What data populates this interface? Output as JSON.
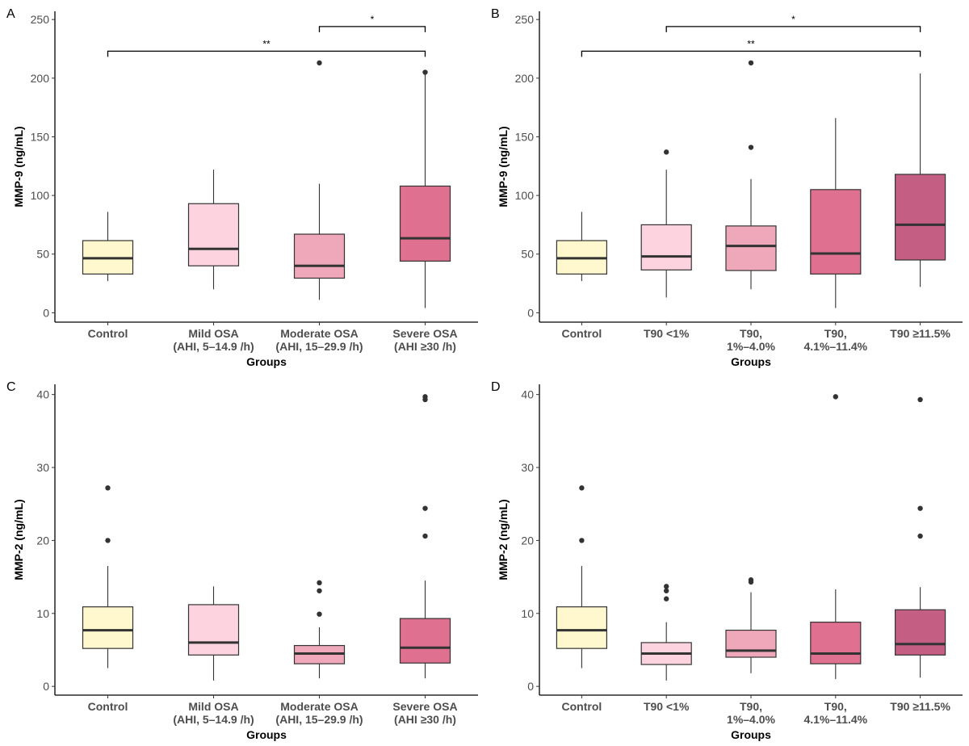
{
  "chart_data": [
    {
      "panel": "A",
      "type": "box",
      "xlabel": "Groups",
      "ylabel": "MMP-9 (ng/mL)",
      "ylim": [
        -8,
        257
      ],
      "yticks": [
        0,
        50,
        100,
        150,
        200,
        250
      ],
      "categories": [
        [
          "Control"
        ],
        [
          "Mild OSA",
          "(AHI, 5–14.9 /h)"
        ],
        [
          "Moderate OSA",
          "(AHI, 15–29.9 /h)"
        ],
        [
          "Severe OSA",
          "(AHI ≥30 /h)"
        ]
      ],
      "fills": [
        "#FFF8CF",
        "#FDD3DF",
        "#EFA8BA",
        "#DF7090"
      ],
      "boxes": [
        {
          "low": 27,
          "q1": 33,
          "median": 46.5,
          "q3": 61.5,
          "high": 86,
          "outliers": []
        },
        {
          "low": 20,
          "q1": 40,
          "median": 54.5,
          "q3": 93,
          "high": 122,
          "outliers": []
        },
        {
          "low": 11,
          "q1": 29.5,
          "median": 40,
          "q3": 67,
          "high": 110,
          "outliers": [
            213
          ]
        },
        {
          "low": 4,
          "q1": 44,
          "median": 63.5,
          "q3": 108,
          "high": 205,
          "outliers": [
            205
          ]
        }
      ],
      "significance": [
        {
          "from": 2,
          "to": 3,
          "y": 244,
          "label": "*"
        },
        {
          "from": 0,
          "to": 3,
          "y": 223,
          "label": "**"
        }
      ]
    },
    {
      "panel": "B",
      "type": "box",
      "xlabel": "Groups",
      "ylabel": "MMP-9 (ng/mL)",
      "ylim": [
        -8,
        257
      ],
      "yticks": [
        0,
        50,
        100,
        150,
        200,
        250
      ],
      "categories": [
        [
          "Control"
        ],
        [
          "T90 <1%"
        ],
        [
          "T90,",
          "1%–4.0%"
        ],
        [
          "T90,",
          "4.1%–11.4%"
        ],
        [
          "T90 ≥11.5%"
        ]
      ],
      "fills": [
        "#FFF8CF",
        "#FDD3DF",
        "#EFA8BA",
        "#DF7090",
        "#C45E82"
      ],
      "boxes": [
        {
          "low": 27,
          "q1": 33,
          "median": 46.5,
          "q3": 61.5,
          "high": 86,
          "outliers": []
        },
        {
          "low": 13,
          "q1": 36.5,
          "median": 48,
          "q3": 75,
          "high": 122,
          "outliers": [
            137
          ]
        },
        {
          "low": 20,
          "q1": 36,
          "median": 57,
          "q3": 74,
          "high": 114,
          "outliers": [
            141,
            213
          ]
        },
        {
          "low": 4,
          "q1": 33,
          "median": 50.5,
          "q3": 105,
          "high": 166,
          "outliers": []
        },
        {
          "low": 22,
          "q1": 45,
          "median": 75,
          "q3": 118,
          "high": 204,
          "outliers": []
        }
      ],
      "significance": [
        {
          "from": 1,
          "to": 4,
          "y": 244,
          "label": "*"
        },
        {
          "from": 0,
          "to": 4,
          "y": 223,
          "label": "**"
        }
      ]
    },
    {
      "panel": "C",
      "type": "box",
      "xlabel": "Groups",
      "ylabel": "MMP-2 (ng/mL)",
      "ylim": [
        -1.2,
        41.4
      ],
      "yticks": [
        0,
        10,
        20,
        30,
        40
      ],
      "categories": [
        [
          "Control"
        ],
        [
          "Mild OSA",
          "(AHI, 5–14.9 /h)"
        ],
        [
          "Moderate OSA",
          "(AHI, 15–29.9 /h)"
        ],
        [
          "Severe OSA",
          "(AHI ≥30 /h)"
        ]
      ],
      "fills": [
        "#FFF8CF",
        "#FDD3DF",
        "#EFA8BA",
        "#DF7090"
      ],
      "boxes": [
        {
          "low": 2.5,
          "q1": 5.2,
          "median": 7.7,
          "q3": 10.9,
          "high": 16.5,
          "outliers": [
            20,
            27.2
          ]
        },
        {
          "low": 0.8,
          "q1": 4.3,
          "median": 6.0,
          "q3": 11.2,
          "high": 13.7,
          "outliers": []
        },
        {
          "low": 1.1,
          "q1": 3.1,
          "median": 4.5,
          "q3": 5.6,
          "high": 8.1,
          "outliers": [
            9.9,
            13.1,
            14.2
          ]
        },
        {
          "low": 1.1,
          "q1": 3.2,
          "median": 5.3,
          "q3": 9.3,
          "high": 14.5,
          "outliers": [
            20.6,
            24.4,
            39.3,
            39.7
          ]
        }
      ],
      "significance": []
    },
    {
      "panel": "D",
      "type": "box",
      "xlabel": "Groups",
      "ylabel": "MMP-2 (ng/mL)",
      "ylim": [
        -1.2,
        41.4
      ],
      "yticks": [
        0,
        10,
        20,
        30,
        40
      ],
      "categories": [
        [
          "Control"
        ],
        [
          "T90 <1%"
        ],
        [
          "T90,",
          "1%–4.0%"
        ],
        [
          "T90,",
          "4.1%–11.4%"
        ],
        [
          "T90 ≥11.5%"
        ]
      ],
      "fills": [
        "#FFF8CF",
        "#FDD3DF",
        "#EFA8BA",
        "#DF7090",
        "#C45E82"
      ],
      "boxes": [
        {
          "low": 2.5,
          "q1": 5.2,
          "median": 7.7,
          "q3": 10.9,
          "high": 16.5,
          "outliers": [
            20,
            27.2
          ]
        },
        {
          "low": 0.8,
          "q1": 3.0,
          "median": 4.5,
          "q3": 6.0,
          "high": 8.8,
          "outliers": [
            12,
            13.1,
            13.7
          ]
        },
        {
          "low": 1.8,
          "q1": 4.0,
          "median": 4.9,
          "q3": 7.7,
          "high": 12.9,
          "outliers": [
            14.3,
            14.6
          ]
        },
        {
          "low": 1.0,
          "q1": 3.1,
          "median": 4.5,
          "q3": 8.8,
          "high": 13.3,
          "outliers": [
            39.7
          ]
        },
        {
          "low": 1.2,
          "q1": 4.3,
          "median": 5.8,
          "q3": 10.5,
          "high": 13.6,
          "outliers": [
            20.6,
            24.4,
            39.3
          ]
        }
      ],
      "significance": []
    }
  ]
}
